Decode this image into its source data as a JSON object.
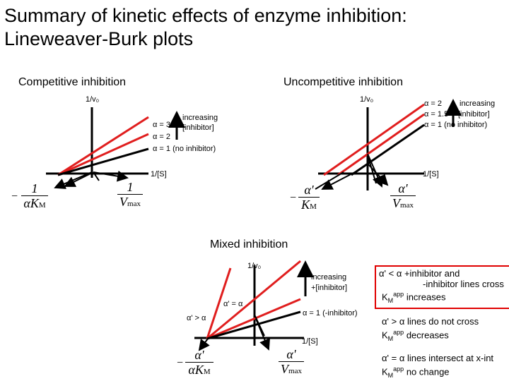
{
  "title": "Summary of kinetic effects of enzyme inhibition: Lineweaver-Burk plots",
  "competitive": {
    "heading": "Competitive inhibition",
    "y_axis": "1/v₀",
    "x_axis": "1/[S]",
    "lines": [
      "α = 3",
      "α = 2",
      "α = 1  (no inhibitor)"
    ],
    "arrow_label": "increasing [inhibitor]",
    "x_intercept_num": "1",
    "x_intercept_den": "αK",
    "x_intercept_den_sub": "M",
    "y_intercept_num": "1",
    "y_intercept_den": "V",
    "y_intercept_den_sub": "max"
  },
  "uncompetitive": {
    "heading": "Uncompetitive inhibition",
    "y_axis": "1/v₀",
    "x_axis": "1/[S]",
    "lines": [
      "α = 2",
      "α = 1.5",
      "α = 1  (no inhibitor)"
    ],
    "arrow_label_1": "increasing",
    "arrow_label_2": "[inhibitor]",
    "x_intercept_num": "α'",
    "x_intercept_den": "K",
    "x_intercept_den_sub": "M",
    "y_intercept_num": "α'",
    "y_intercept_den": "V",
    "y_intercept_den_sub": "max"
  },
  "mixed": {
    "heading": "Mixed inhibition",
    "y_axis": "1/v₀",
    "x_axis": "1/[S]",
    "arrow_label_1": "increasing",
    "arrow_label_2": "+[inhibitor]",
    "label_equal": "α' = α",
    "label_greater": "α' > α",
    "label_no_inhibitor": "α = 1  (-inhibitor)",
    "x_intercept_num": "α'",
    "x_intercept_den": "αK",
    "x_intercept_den_sub": "M",
    "y_intercept_num": "α'",
    "y_intercept_den": "V",
    "y_intercept_den_sub": "max"
  },
  "notes": {
    "box_line1": "α' < α  +inhibitor and",
    "box_line2": "-inhibitor lines cross",
    "box_line3_pre": "K",
    "box_line3_sub": "M",
    "box_line3_sup": "app",
    "box_line3_post": " increases",
    "note2_line1": "α' > α lines do not cross",
    "note2_line2_pre": "K",
    "note2_line2_sub": "M",
    "note2_line2_sup": "app",
    "note2_line2_post": " decreases",
    "note3_line1": "α' = α lines intersect at x-int",
    "note3_line2_pre": "K",
    "note3_line2_sub": "M",
    "note3_line2_sup": "app",
    "note3_line2_post": " no change"
  },
  "colors": {
    "inhibitor_line": "#e01e1e",
    "axis": "#000000",
    "note_box": "#e00000"
  }
}
